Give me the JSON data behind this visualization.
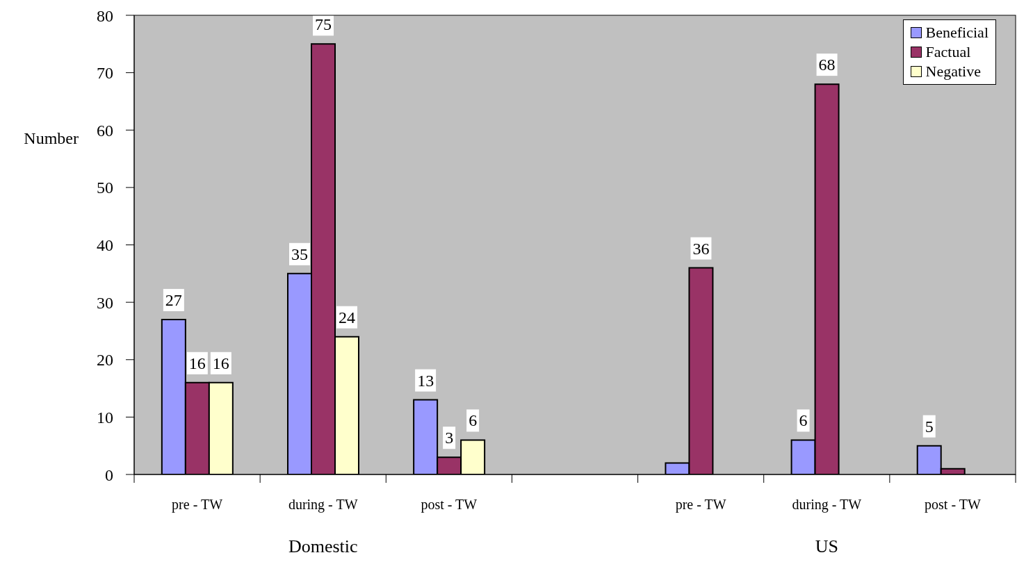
{
  "chart_data": {
    "type": "bar",
    "ylabel": "Number",
    "categories": [
      "pre - TW",
      "during - TW",
      "post - TW",
      null,
      "pre - TW",
      "during - TW",
      "post - TW"
    ],
    "series": [
      {
        "name": "Beneficial",
        "color": "#9999ff",
        "values": [
          27,
          35,
          13,
          null,
          2,
          6,
          5
        ],
        "value_labels": [
          "27",
          "35",
          "13",
          null,
          null,
          "6",
          "5"
        ]
      },
      {
        "name": "Factual",
        "color": "#993366",
        "values": [
          16,
          75,
          3,
          null,
          36,
          68,
          1
        ],
        "value_labels": [
          "16",
          "75",
          "3",
          null,
          "36",
          "68",
          null
        ]
      },
      {
        "name": "Negative",
        "color": "#ffffcc",
        "values": [
          16,
          24,
          6,
          null,
          null,
          null,
          null
        ],
        "value_labels": [
          "16",
          "24",
          "6",
          null,
          null,
          null,
          null
        ]
      }
    ],
    "ylim": [
      0,
      80
    ],
    "yticks": [
      0,
      10,
      20,
      30,
      40,
      50,
      60,
      70,
      80
    ],
    "grid": false,
    "legend": "top right",
    "annotations": [
      "Domestic",
      "US"
    ]
  }
}
